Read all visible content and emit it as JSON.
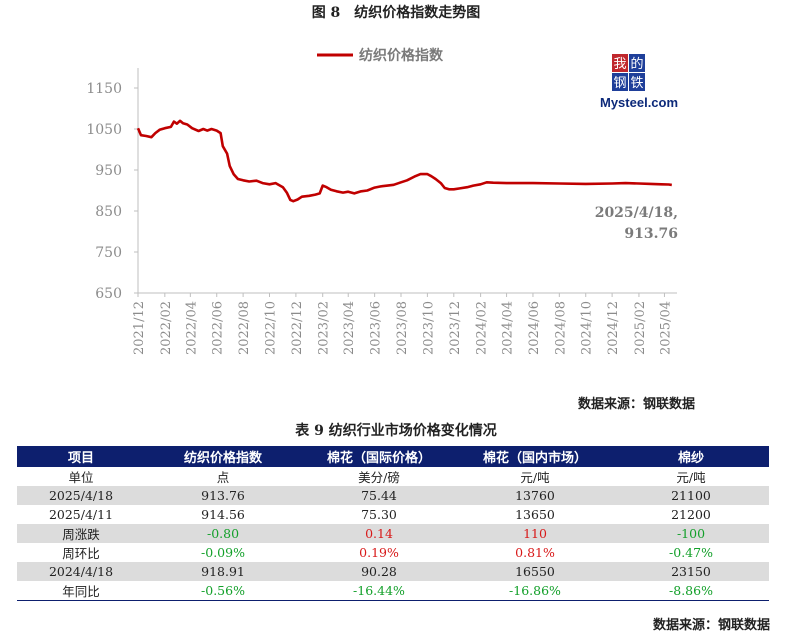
{
  "figure_title": "图 8　纺织价格指数走势图",
  "source_text": "数据来源：钢联数据",
  "logo": {
    "chars": [
      "我",
      "的",
      "钢",
      "铁"
    ],
    "brand": "Mysteel.com",
    "brand_color": "#0d2a7a",
    "tile_colors": [
      "#c0272d",
      "#1f3f9a",
      "#1f3f9a",
      "#1f3f9a"
    ]
  },
  "chart_data": {
    "type": "line",
    "title": "",
    "xlabel": "",
    "ylabel": "",
    "ylim": [
      650,
      1150
    ],
    "yticks": [
      650,
      750,
      850,
      950,
      1050,
      1150
    ],
    "xlim": [
      "2021-12-01",
      "2025-04-30"
    ],
    "xticks": [
      "2021/12",
      "2022/02",
      "2022/04",
      "2022/06",
      "2022/08",
      "2022/10",
      "2022/12",
      "2023/02",
      "2023/04",
      "2023/06",
      "2023/08",
      "2023/10",
      "2023/12",
      "2024/02",
      "2024/04",
      "2024/06",
      "2024/08",
      "2024/10",
      "2024/12",
      "2025/02",
      "2025/04"
    ],
    "grid": false,
    "legend": "top-center",
    "series": [
      {
        "name": "纺织价格指数",
        "color": "#c00000",
        "points": [
          [
            "2021-12-01",
            1052
          ],
          [
            "2021-12-08",
            1035
          ],
          [
            "2021-12-20",
            1033
          ],
          [
            "2022-01-01",
            1030
          ],
          [
            "2022-01-10",
            1040
          ],
          [
            "2022-01-20",
            1048
          ],
          [
            "2022-02-01",
            1052
          ],
          [
            "2022-02-15",
            1055
          ],
          [
            "2022-02-22",
            1068
          ],
          [
            "2022-03-01",
            1063
          ],
          [
            "2022-03-08",
            1070
          ],
          [
            "2022-03-15",
            1064
          ],
          [
            "2022-03-25",
            1061
          ],
          [
            "2022-04-05",
            1052
          ],
          [
            "2022-04-20",
            1045
          ],
          [
            "2022-05-01",
            1050
          ],
          [
            "2022-05-10",
            1046
          ],
          [
            "2022-05-20",
            1050
          ],
          [
            "2022-06-01",
            1046
          ],
          [
            "2022-06-10",
            1040
          ],
          [
            "2022-06-15",
            1008
          ],
          [
            "2022-06-25",
            990
          ],
          [
            "2022-07-01",
            960
          ],
          [
            "2022-07-10",
            940
          ],
          [
            "2022-07-20",
            928
          ],
          [
            "2022-08-01",
            925
          ],
          [
            "2022-08-15",
            922
          ],
          [
            "2022-09-01",
            924
          ],
          [
            "2022-09-15",
            918
          ],
          [
            "2022-10-01",
            915
          ],
          [
            "2022-10-15",
            918
          ],
          [
            "2022-11-01",
            908
          ],
          [
            "2022-11-10",
            895
          ],
          [
            "2022-11-18",
            877
          ],
          [
            "2022-11-25",
            874
          ],
          [
            "2022-12-05",
            878
          ],
          [
            "2022-12-15",
            885
          ],
          [
            "2023-01-01",
            887
          ],
          [
            "2023-01-15",
            890
          ],
          [
            "2023-01-25",
            893
          ],
          [
            "2023-02-01",
            912
          ],
          [
            "2023-02-10",
            908
          ],
          [
            "2023-02-20",
            902
          ],
          [
            "2023-03-05",
            898
          ],
          [
            "2023-03-20",
            895
          ],
          [
            "2023-04-01",
            897
          ],
          [
            "2023-04-15",
            893
          ],
          [
            "2023-05-01",
            898
          ],
          [
            "2023-05-15",
            900
          ],
          [
            "2023-06-01",
            907
          ],
          [
            "2023-06-15",
            910
          ],
          [
            "2023-07-01",
            912
          ],
          [
            "2023-07-15",
            914
          ],
          [
            "2023-08-01",
            920
          ],
          [
            "2023-08-15",
            925
          ],
          [
            "2023-09-01",
            934
          ],
          [
            "2023-09-15",
            940
          ],
          [
            "2023-10-01",
            940
          ],
          [
            "2023-10-10",
            935
          ],
          [
            "2023-10-20",
            928
          ],
          [
            "2023-11-01",
            918
          ],
          [
            "2023-11-10",
            906
          ],
          [
            "2023-11-20",
            903
          ],
          [
            "2023-12-01",
            903
          ],
          [
            "2023-12-15",
            905
          ],
          [
            "2024-01-01",
            908
          ],
          [
            "2024-01-15",
            912
          ],
          [
            "2024-02-01",
            915
          ],
          [
            "2024-02-15",
            920
          ],
          [
            "2024-03-01",
            919
          ],
          [
            "2024-04-01",
            918
          ],
          [
            "2024-06-01",
            918
          ],
          [
            "2024-08-01",
            917
          ],
          [
            "2024-10-01",
            916
          ],
          [
            "2024-12-01",
            917
          ],
          [
            "2025-01-01",
            918
          ],
          [
            "2025-02-01",
            917
          ],
          [
            "2025-03-01",
            916
          ],
          [
            "2025-03-25",
            915
          ],
          [
            "2025-04-11",
            914.56
          ],
          [
            "2025-04-18",
            913.76
          ]
        ]
      }
    ],
    "annotations": [
      {
        "lines": [
          "2025/4/18,",
          "913.76"
        ]
      }
    ]
  },
  "table": {
    "title": "表 9 纺织行业市场价格变化情况",
    "headers": [
      "项目",
      "纺织价格指数",
      "棉花（国际价格）",
      "棉花（国内市场）",
      "棉纱"
    ],
    "rows": [
      {
        "cells": [
          "单位",
          "点",
          "美分/磅",
          "元/吨",
          "元/吨"
        ],
        "shade": false,
        "colored": false
      },
      {
        "cells": [
          "2025/4/18",
          "913.76",
          "75.44",
          "13760",
          "21100"
        ],
        "shade": true,
        "colored": false
      },
      {
        "cells": [
          "2025/4/11",
          "914.56",
          "75.30",
          "13650",
          "21200"
        ],
        "shade": false,
        "colored": false
      },
      {
        "cells": [
          "周涨跌",
          "-0.80",
          "0.14",
          "110",
          "-100"
        ],
        "shade": true,
        "colored": true
      },
      {
        "cells": [
          "周环比",
          "-0.09%",
          "0.19%",
          "0.81%",
          "-0.47%"
        ],
        "shade": false,
        "colored": true
      },
      {
        "cells": [
          "2024/4/18",
          "918.91",
          "90.28",
          "16550",
          "23150"
        ],
        "shade": true,
        "colored": false
      },
      {
        "cells": [
          "年同比",
          "-0.56%",
          "-16.44%",
          "-16.86%",
          "-8.86%"
        ],
        "shade": false,
        "colored": true
      }
    ]
  }
}
